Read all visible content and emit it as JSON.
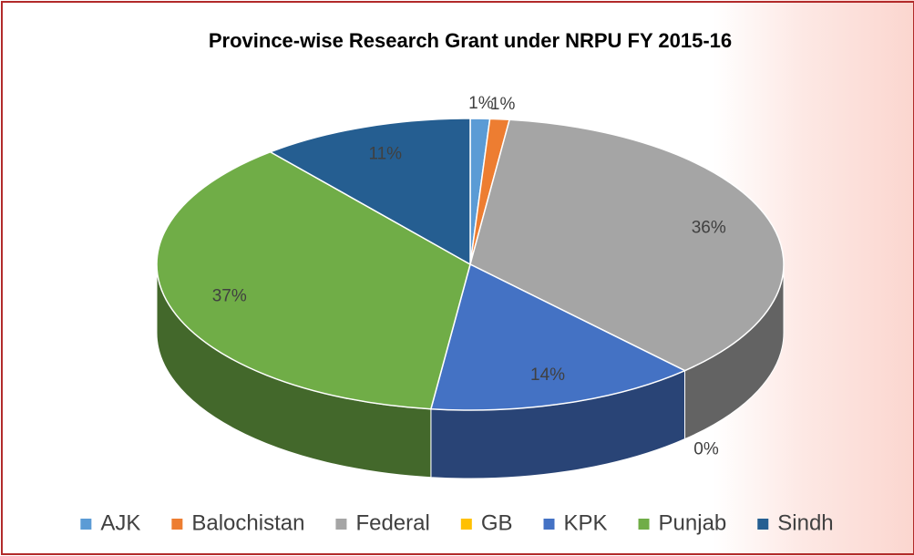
{
  "chart_data": {
    "type": "pie",
    "title": "Province-wise Research Grant under NRPU FY 2015-16",
    "categories": [
      "AJK",
      "Balochistan",
      "Federal",
      "GB",
      "KPK",
      "Punjab",
      "Sindh"
    ],
    "values": [
      1,
      1,
      36,
      0,
      14,
      37,
      11
    ],
    "value_labels": [
      "1%",
      "1%",
      "36%",
      "0%",
      "14%",
      "37%",
      "11%"
    ],
    "colors": [
      "#5b9bd5",
      "#ed7d31",
      "#a5a5a5",
      "#ffc000",
      "#4472c4",
      "#70ad47",
      "#255e91"
    ],
    "legend": "bottom"
  }
}
